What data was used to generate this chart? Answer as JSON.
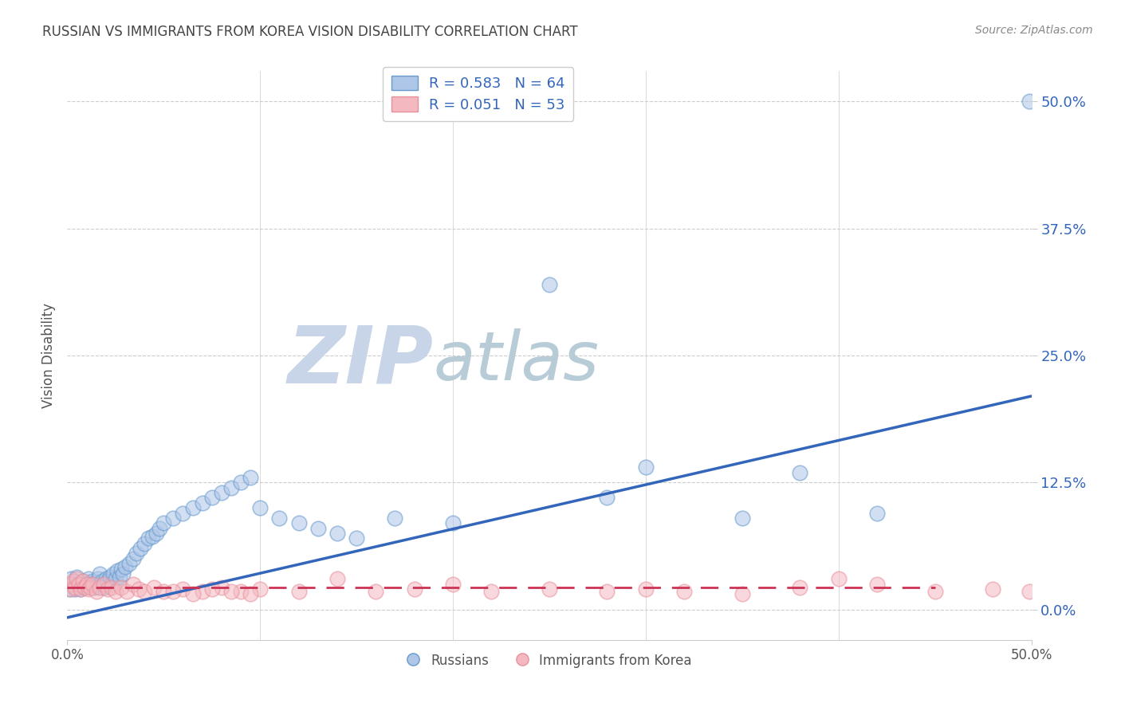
{
  "title": "RUSSIAN VS IMMIGRANTS FROM KOREA VISION DISABILITY CORRELATION CHART",
  "source": "Source: ZipAtlas.com",
  "ylabel": "Vision Disability",
  "legend_label_blue": "Russians",
  "legend_label_pink": "Immigrants from Korea",
  "R_blue": 0.583,
  "N_blue": 64,
  "R_pink": 0.051,
  "N_pink": 53,
  "ytick_labels": [
    "0.0%",
    "12.5%",
    "25.0%",
    "37.5%",
    "50.0%"
  ],
  "ytick_values": [
    0.0,
    0.125,
    0.25,
    0.375,
    0.5
  ],
  "xlim": [
    0.0,
    0.5
  ],
  "ylim": [
    -0.03,
    0.53
  ],
  "background_color": "#ffffff",
  "blue_fill": "#aec6e8",
  "blue_edge": "#6699cc",
  "pink_fill": "#f4b8c1",
  "pink_edge": "#e8909a",
  "blue_line_color": "#3366bb",
  "pink_line_color": "#cc3355",
  "grid_color": "#cccccc",
  "title_color": "#444444",
  "axis_label_color": "#555555",
  "tick_label_color": "#3366bb",
  "watermark_zip_color": "#ccd8e8",
  "watermark_atlas_color": "#c8d8e0",
  "russians_x": [
    0.001,
    0.002,
    0.003,
    0.004,
    0.005,
    0.006,
    0.007,
    0.008,
    0.009,
    0.01,
    0.011,
    0.012,
    0.013,
    0.014,
    0.015,
    0.016,
    0.017,
    0.018,
    0.019,
    0.02,
    0.021,
    0.022,
    0.023,
    0.024,
    0.025,
    0.026,
    0.027,
    0.028,
    0.029,
    0.03,
    0.032,
    0.034,
    0.036,
    0.038,
    0.04,
    0.042,
    0.044,
    0.046,
    0.048,
    0.05,
    0.055,
    0.06,
    0.065,
    0.07,
    0.075,
    0.08,
    0.085,
    0.09,
    0.095,
    0.1,
    0.11,
    0.12,
    0.13,
    0.14,
    0.15,
    0.17,
    0.2,
    0.25,
    0.28,
    0.3,
    0.35,
    0.38,
    0.42,
    0.499
  ],
  "russians_y": [
    0.02,
    0.03,
    0.025,
    0.02,
    0.032,
    0.025,
    0.02,
    0.028,
    0.022,
    0.025,
    0.03,
    0.025,
    0.028,
    0.022,
    0.025,
    0.03,
    0.035,
    0.028,
    0.022,
    0.03,
    0.028,
    0.032,
    0.025,
    0.035,
    0.03,
    0.038,
    0.032,
    0.04,
    0.035,
    0.042,
    0.045,
    0.05,
    0.055,
    0.06,
    0.065,
    0.07,
    0.072,
    0.075,
    0.08,
    0.085,
    0.09,
    0.095,
    0.1,
    0.105,
    0.11,
    0.115,
    0.12,
    0.125,
    0.13,
    0.1,
    0.09,
    0.085,
    0.08,
    0.075,
    0.07,
    0.09,
    0.085,
    0.32,
    0.11,
    0.14,
    0.09,
    0.135,
    0.095,
    0.5
  ],
  "korea_x": [
    0.001,
    0.002,
    0.003,
    0.004,
    0.005,
    0.006,
    0.007,
    0.008,
    0.009,
    0.01,
    0.011,
    0.012,
    0.013,
    0.015,
    0.017,
    0.019,
    0.021,
    0.023,
    0.025,
    0.028,
    0.031,
    0.034,
    0.037,
    0.04,
    0.045,
    0.05,
    0.06,
    0.07,
    0.08,
    0.09,
    0.1,
    0.12,
    0.14,
    0.16,
    0.18,
    0.2,
    0.22,
    0.25,
    0.28,
    0.3,
    0.32,
    0.35,
    0.38,
    0.4,
    0.42,
    0.45,
    0.48,
    0.499,
    0.055,
    0.065,
    0.075,
    0.085,
    0.095
  ],
  "korea_y": [
    0.025,
    0.02,
    0.028,
    0.022,
    0.03,
    0.025,
    0.02,
    0.028,
    0.022,
    0.025,
    0.02,
    0.022,
    0.025,
    0.018,
    0.022,
    0.025,
    0.02,
    0.022,
    0.018,
    0.022,
    0.018,
    0.025,
    0.02,
    0.018,
    0.022,
    0.018,
    0.02,
    0.018,
    0.022,
    0.018,
    0.02,
    0.018,
    0.03,
    0.018,
    0.02,
    0.025,
    0.018,
    0.02,
    0.018,
    0.02,
    0.018,
    0.015,
    0.022,
    0.03,
    0.025,
    0.018,
    0.02,
    0.018,
    0.018,
    0.015,
    0.02,
    0.018,
    0.015
  ],
  "blue_line_x": [
    0.0,
    0.5
  ],
  "blue_line_y": [
    -0.008,
    0.21
  ],
  "pink_line_x": [
    0.0,
    0.45
  ],
  "pink_line_y": [
    0.022,
    0.022
  ]
}
